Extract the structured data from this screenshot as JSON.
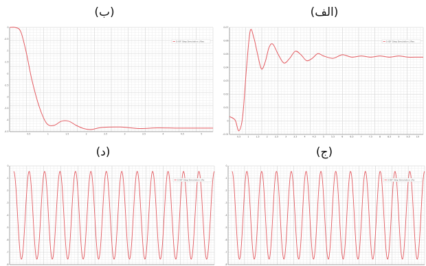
{
  "panels": [
    {
      "id": "alef",
      "caption": "(الف)",
      "legend": "S-IDF Step Simulation | Res",
      "curve": "step_underdamped",
      "series_color": "#e3595f",
      "x_ticks": [
        "0.5",
        "1",
        "1.5",
        "2",
        "2.5",
        "3",
        "3.5",
        "4",
        "4.5",
        "5",
        "5.5",
        "6",
        "6.5",
        "7",
        "7.5",
        "8",
        "8.5",
        "9",
        "9.5",
        "10"
      ],
      "y_ticks": [
        "0.07",
        "0.06",
        "0.05",
        "0.04",
        "0.03",
        "0.02",
        "0.01",
        "0",
        "-0.01"
      ]
    },
    {
      "id": "be",
      "caption": "(ب)",
      "legend": "S-IDF Step Simulation | Res",
      "curve": "step_decay",
      "series_color": "#e3595f",
      "x_ticks": [
        "0.5",
        "1",
        "1.5",
        "2",
        "2.5",
        "3",
        "3.5",
        "4",
        "4.5",
        "5"
      ],
      "y_ticks": [
        "0",
        "-0.5",
        "-1",
        "-1.5",
        "-2",
        "-2.5",
        "-3",
        "-3.5",
        "-4",
        "-4.5"
      ]
    },
    {
      "id": "jim",
      "caption": "(ج)",
      "legend": "S-IDF Step Simulation | Re",
      "curve": "oscillation",
      "series_color": "#e3595f",
      "x_ticks": [],
      "y_ticks": [
        "0",
        "-1",
        "-2",
        "-3",
        "-4",
        "-5",
        "-6",
        "-7",
        "-8"
      ]
    },
    {
      "id": "dal",
      "caption": "(د)",
      "legend": "S-IDF Step Simulation | Re",
      "curve": "oscillation",
      "series_color": "#e3595f",
      "x_ticks": [],
      "y_ticks": [
        "0",
        "-1",
        "-2",
        "-3",
        "-4",
        "-5",
        "-6",
        "-7",
        "-8"
      ]
    }
  ],
  "chart_data": [
    {
      "type": "line",
      "panel": "(الف)",
      "series": [
        {
          "name": "S-IDF Step Simulation | Res",
          "x": [
            0,
            0.3,
            0.5,
            0.7,
            0.9,
            1.1,
            1.3,
            1.5,
            1.7,
            1.9,
            2.1,
            2.3,
            2.6,
            2.9,
            3.2,
            3.5,
            3.8,
            4.1,
            4.4,
            4.7,
            5,
            5.5,
            6,
            6.5,
            7,
            7.5,
            8,
            8.5,
            9,
            9.5,
            10,
            10.3
          ],
          "y": [
            0,
            -0.003,
            -0.012,
            0,
            0.04,
            0.072,
            0.066,
            0.052,
            0.04,
            0.046,
            0.058,
            0.061,
            0.052,
            0.045,
            0.049,
            0.055,
            0.052,
            0.047,
            0.049,
            0.053,
            0.051,
            0.049,
            0.052,
            0.05,
            0.051,
            0.05,
            0.051,
            0.05,
            0.051,
            0.05,
            0.05,
            0.05
          ]
        }
      ],
      "xlim": [
        0,
        10.3
      ],
      "ylim": [
        -0.015,
        0.075
      ]
    },
    {
      "type": "line",
      "panel": "(ب)",
      "series": [
        {
          "name": "S-IDF Step Simulation | Res",
          "x": [
            0,
            0.15,
            0.3,
            0.45,
            0.6,
            0.8,
            1,
            1.2,
            1.4,
            1.6,
            1.8,
            2,
            2.2,
            2.5,
            3,
            3.5,
            4,
            4.5,
            5,
            5.5
          ],
          "y": [
            0,
            0,
            -0.2,
            -1.2,
            -2.5,
            -3.8,
            -4.6,
            -4.7,
            -4.5,
            -4.5,
            -4.7,
            -4.85,
            -4.9,
            -4.8,
            -4.78,
            -4.85,
            -4.82,
            -4.83,
            -4.83,
            -4.83
          ]
        }
      ],
      "xlim": [
        0,
        5.5
      ],
      "ylim": [
        -5,
        0
      ]
    },
    {
      "type": "line",
      "panel": "(ج)",
      "series": [
        {
          "name": "S-IDF Step Simulation | Re",
          "description_values": "oscillation between 0 and -8, about 13 cycles",
          "amplitude_max": 0,
          "amplitude_min": -8,
          "cycles": 13
        }
      ],
      "ylim": [
        -8.5,
        0.5
      ]
    },
    {
      "type": "line",
      "panel": "(د)",
      "series": [
        {
          "name": "S-IDF Step Simulation | Re",
          "description_values": "oscillation between 0 and -8, about 13 cycles",
          "amplitude_max": 0,
          "amplitude_min": -8,
          "cycles": 13
        }
      ],
      "ylim": [
        -8.5,
        0.5
      ]
    }
  ]
}
